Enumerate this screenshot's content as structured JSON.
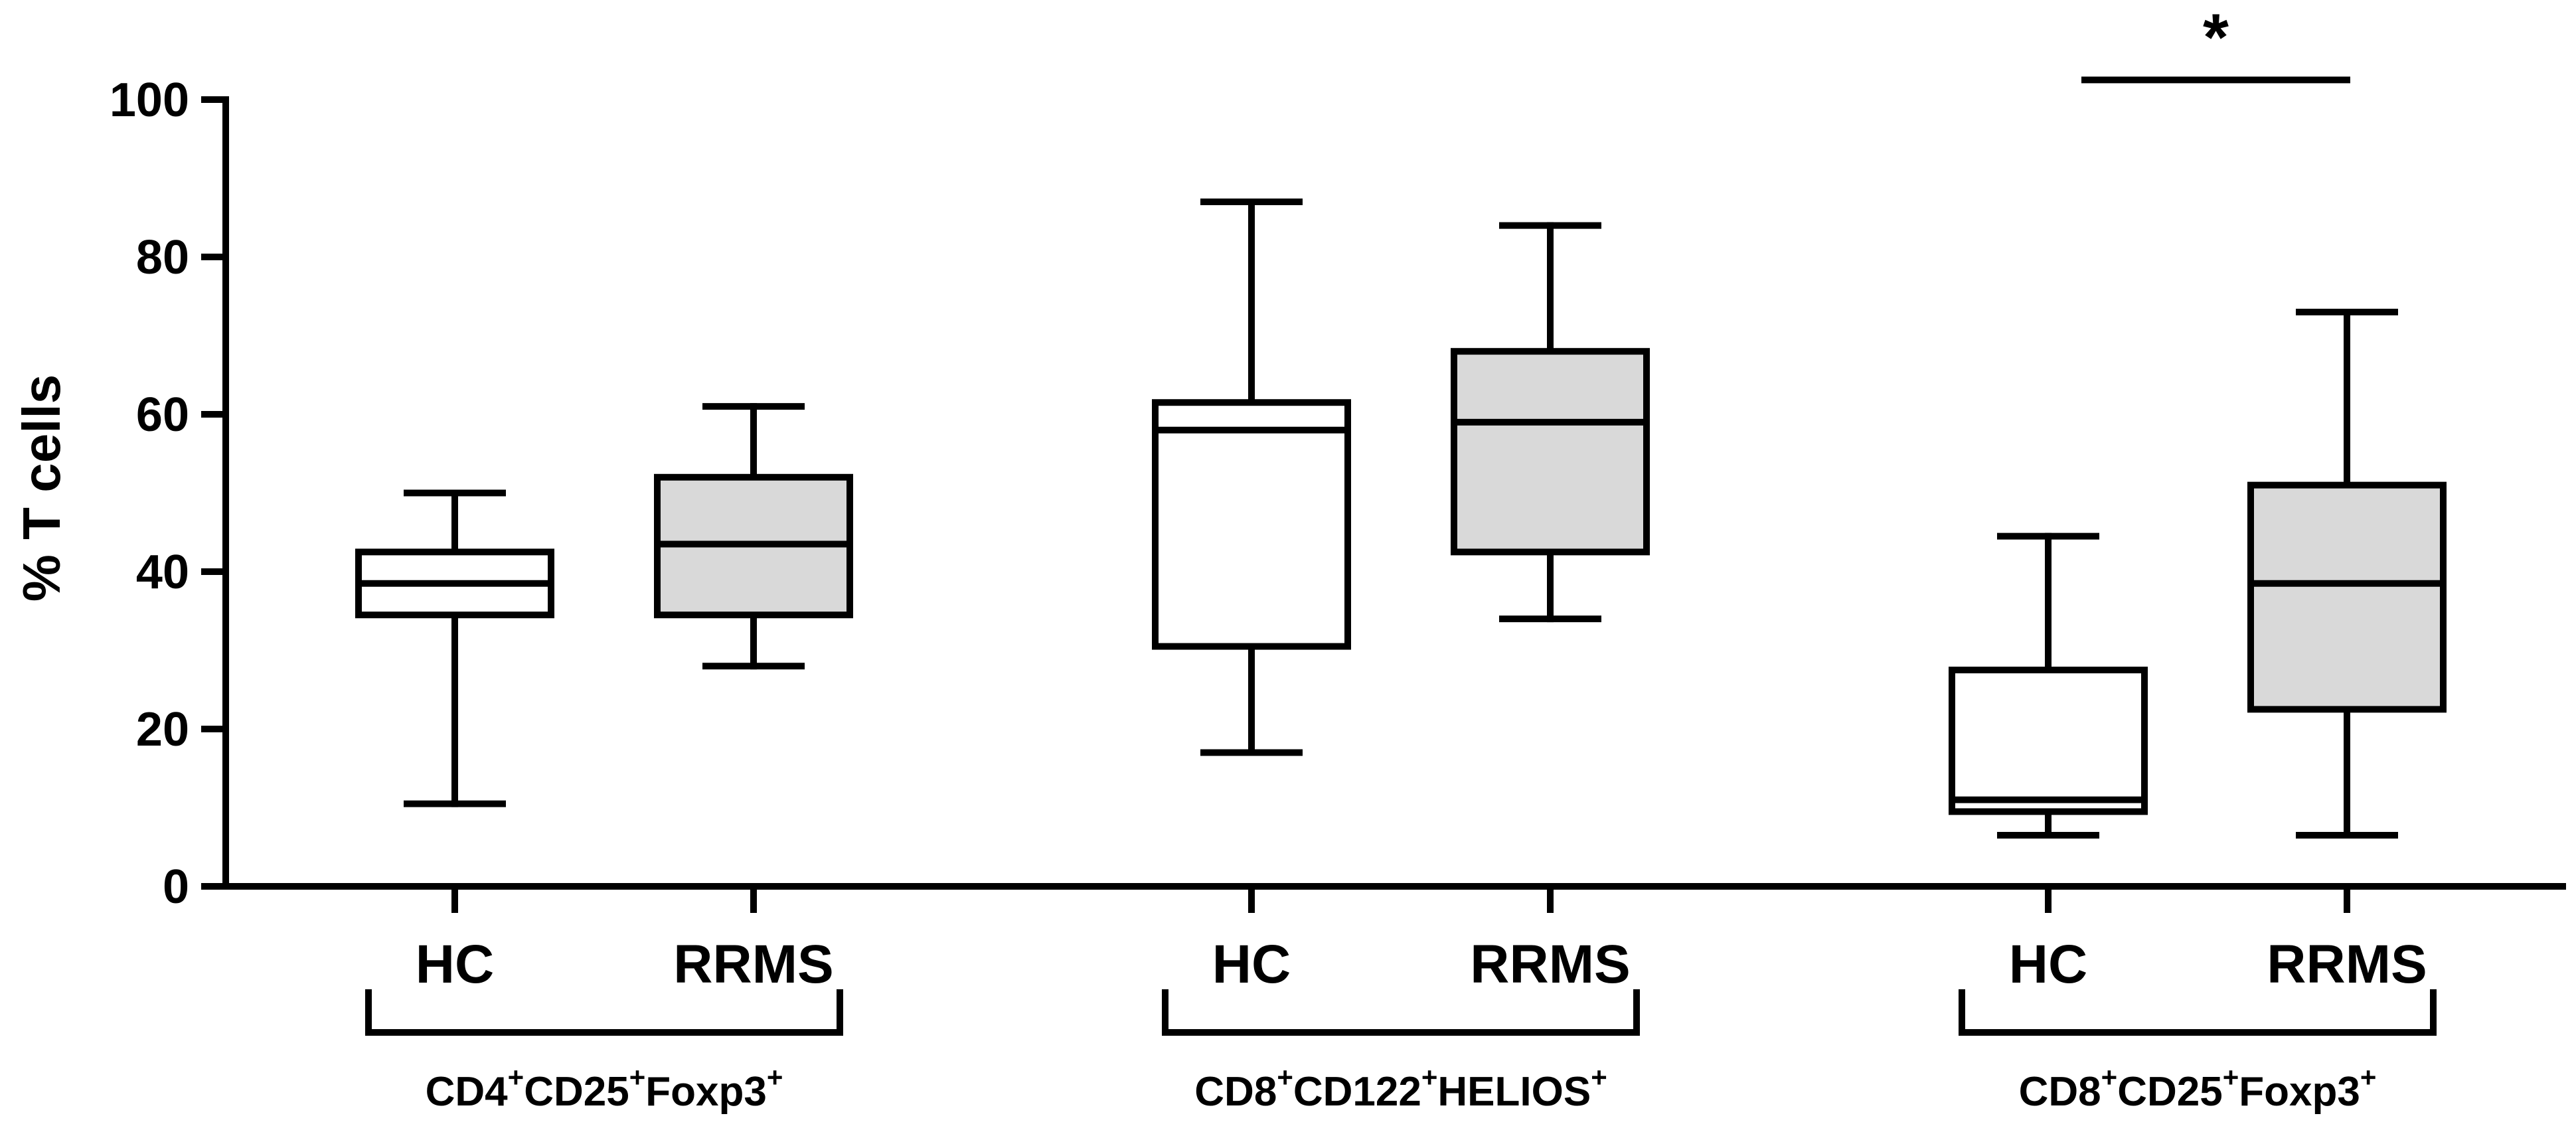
{
  "chart_data": {
    "type": "box",
    "ylabel": "% T cells",
    "ylim": [
      0,
      100
    ],
    "yticks": [
      0,
      20,
      40,
      60,
      80,
      100
    ],
    "groups": [
      {
        "label_parts": [
          {
            "text": "CD4",
            "sup": false
          },
          {
            "text": "+",
            "sup": true
          },
          {
            "text": "CD25",
            "sup": false
          },
          {
            "text": "+",
            "sup": true
          },
          {
            "text": "Foxp3",
            "sup": false
          },
          {
            "text": "+",
            "sup": true
          }
        ],
        "boxes": [
          {
            "category": "HC",
            "min": 10.5,
            "q1": 34.5,
            "median": 38.5,
            "q3": 42.5,
            "max": 50,
            "fill": "#ffffff"
          },
          {
            "category": "RRMS",
            "min": 28,
            "q1": 34.5,
            "median": 43.5,
            "q3": 52,
            "max": 61,
            "fill": "#d9d9d9"
          }
        ]
      },
      {
        "label_parts": [
          {
            "text": "CD8",
            "sup": false
          },
          {
            "text": "+",
            "sup": true
          },
          {
            "text": "CD122",
            "sup": false
          },
          {
            "text": "+",
            "sup": true
          },
          {
            "text": "HELIOS",
            "sup": false
          },
          {
            "text": "+",
            "sup": true
          }
        ],
        "boxes": [
          {
            "category": "HC",
            "min": 17,
            "q1": 30.5,
            "median": 58,
            "q3": 61.5,
            "max": 87,
            "fill": "#ffffff"
          },
          {
            "category": "RRMS",
            "min": 34,
            "q1": 42.5,
            "median": 59,
            "q3": 68,
            "max": 84,
            "fill": "#d9d9d9"
          }
        ]
      },
      {
        "label_parts": [
          {
            "text": "CD8",
            "sup": false
          },
          {
            "text": "+",
            "sup": true
          },
          {
            "text": "CD25",
            "sup": false
          },
          {
            "text": "+",
            "sup": true
          },
          {
            "text": "Foxp3",
            "sup": false
          },
          {
            "text": "+",
            "sup": true
          }
        ],
        "boxes": [
          {
            "category": "HC",
            "min": 6.5,
            "q1": 9.5,
            "median": 11,
            "q3": 27.5,
            "max": 44.5,
            "fill": "#ffffff"
          },
          {
            "category": "RRMS",
            "min": 6.5,
            "q1": 22.5,
            "median": 38.5,
            "q3": 51,
            "max": 73,
            "fill": "#d9d9d9"
          }
        ]
      }
    ],
    "annotations": [
      {
        "text": "*",
        "group_index": 2,
        "y": 102.5
      }
    ]
  }
}
